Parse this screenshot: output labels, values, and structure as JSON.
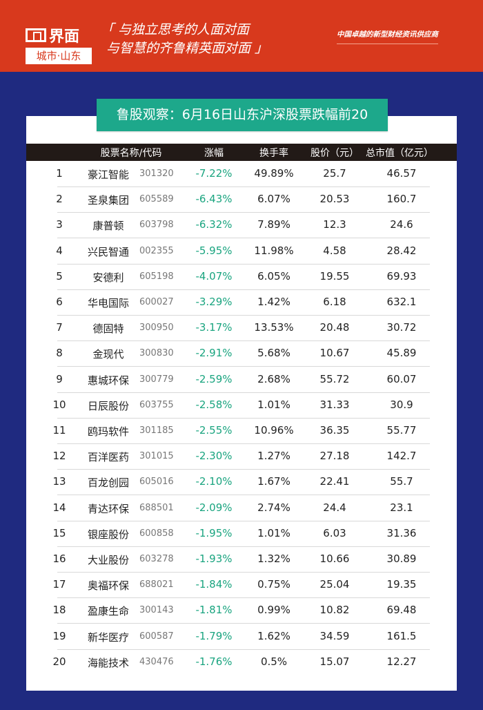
{
  "header": {
    "logo_main": "界面",
    "logo_sub": "城市·山东",
    "slogan_line1": "「 与独立思考的人面对面",
    "slogan_line2": "与智慧的齐鲁精英面对面 」",
    "tagline": "中国卓越的新型财经资讯供应商"
  },
  "title": "鲁股观察：6月16日山东沪深股票跌幅前20",
  "colors": {
    "header_red": "#d8391d",
    "background_blue": "#1f2a80",
    "title_green": "#1da88b",
    "change_green": "#19a47f"
  },
  "columns": [
    "股票名称/代码",
    "涨幅",
    "换手率",
    "股价（元）",
    "总市值（亿元）"
  ],
  "rows": [
    {
      "rank": "1",
      "name": "豪江智能",
      "code": "301320",
      "change": "-7.22%",
      "turnover": "49.89%",
      "price": "25.7",
      "mcap": "46.57"
    },
    {
      "rank": "2",
      "name": "圣泉集团",
      "code": "605589",
      "change": "-6.43%",
      "turnover": "6.07%",
      "price": "20.53",
      "mcap": "160.7"
    },
    {
      "rank": "3",
      "name": "康普顿",
      "code": "603798",
      "change": "-6.32%",
      "turnover": "7.89%",
      "price": "12.3",
      "mcap": "24.6"
    },
    {
      "rank": "4",
      "name": "兴民智通",
      "code": "002355",
      "change": "-5.95%",
      "turnover": "11.98%",
      "price": "4.58",
      "mcap": "28.42"
    },
    {
      "rank": "5",
      "name": "安德利",
      "code": "605198",
      "change": "-4.07%",
      "turnover": "6.05%",
      "price": "19.55",
      "mcap": "69.93"
    },
    {
      "rank": "6",
      "name": "华电国际",
      "code": "600027",
      "change": "-3.29%",
      "turnover": "1.42%",
      "price": "6.18",
      "mcap": "632.1"
    },
    {
      "rank": "7",
      "name": "德固特",
      "code": "300950",
      "change": "-3.17%",
      "turnover": "13.53%",
      "price": "20.48",
      "mcap": "30.72"
    },
    {
      "rank": "8",
      "name": "金现代",
      "code": "300830",
      "change": "-2.91%",
      "turnover": "5.68%",
      "price": "10.67",
      "mcap": "45.89"
    },
    {
      "rank": "9",
      "name": "惠城环保",
      "code": "300779",
      "change": "-2.59%",
      "turnover": "2.68%",
      "price": "55.72",
      "mcap": "60.07"
    },
    {
      "rank": "10",
      "name": "日辰股份",
      "code": "603755",
      "change": "-2.58%",
      "turnover": "1.01%",
      "price": "31.33",
      "mcap": "30.9"
    },
    {
      "rank": "11",
      "name": "鸥玛软件",
      "code": "301185",
      "change": "-2.55%",
      "turnover": "10.96%",
      "price": "36.35",
      "mcap": "55.77"
    },
    {
      "rank": "12",
      "name": "百洋医药",
      "code": "301015",
      "change": "-2.30%",
      "turnover": "1.27%",
      "price": "27.18",
      "mcap": "142.7"
    },
    {
      "rank": "13",
      "name": "百龙创园",
      "code": "605016",
      "change": "-2.10%",
      "turnover": "1.67%",
      "price": "22.41",
      "mcap": "55.7"
    },
    {
      "rank": "14",
      "name": "青达环保",
      "code": "688501",
      "change": "-2.09%",
      "turnover": "2.74%",
      "price": "24.4",
      "mcap": "23.1"
    },
    {
      "rank": "15",
      "name": "银座股份",
      "code": "600858",
      "change": "-1.95%",
      "turnover": "1.01%",
      "price": "6.03",
      "mcap": "31.36"
    },
    {
      "rank": "16",
      "name": "大业股份",
      "code": "603278",
      "change": "-1.93%",
      "turnover": "1.32%",
      "price": "10.66",
      "mcap": "30.89"
    },
    {
      "rank": "17",
      "name": "奥福环保",
      "code": "688021",
      "change": "-1.84%",
      "turnover": "0.75%",
      "price": "25.04",
      "mcap": "19.35"
    },
    {
      "rank": "18",
      "name": "盈康生命",
      "code": "300143",
      "change": "-1.81%",
      "turnover": "0.99%",
      "price": "10.82",
      "mcap": "69.48"
    },
    {
      "rank": "19",
      "name": "新华医疗",
      "code": "600587",
      "change": "-1.79%",
      "turnover": "1.62%",
      "price": "34.59",
      "mcap": "161.5"
    },
    {
      "rank": "20",
      "name": "海能技术",
      "code": "430476",
      "change": "-1.76%",
      "turnover": "0.5%",
      "price": "15.07",
      "mcap": "12.27"
    }
  ]
}
